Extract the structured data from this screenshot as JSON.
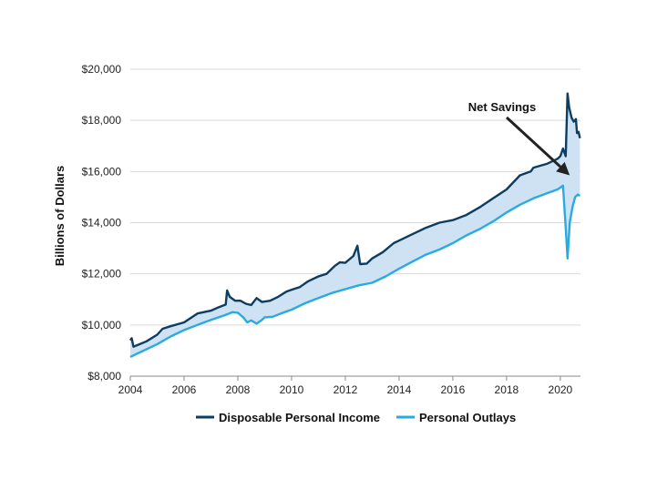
{
  "chart_data": {
    "type": "line",
    "title": "",
    "xlabel": "",
    "ylabel": "Billions of Dollars",
    "xlim": [
      2004,
      2020.75
    ],
    "ylim": [
      8000,
      20000
    ],
    "x_ticks": [
      2004,
      2006,
      2008,
      2010,
      2012,
      2014,
      2016,
      2018,
      2020
    ],
    "x_tick_labels": [
      "2004",
      "2006",
      "2008",
      "2010",
      "2012",
      "2014",
      "2016",
      "2018",
      "2020"
    ],
    "y_ticks": [
      8000,
      10000,
      12000,
      14000,
      16000,
      18000,
      20000
    ],
    "y_tick_labels": [
      "$8,000",
      "$10,000",
      "$12,000",
      "$14,000",
      "$16,000",
      "$18,000",
      "$20,000"
    ],
    "grid": "horizontal",
    "legend_position": "bottom",
    "fill_between": {
      "color": "#cfe2f3"
    },
    "annotation": {
      "text": "Net Savings",
      "points_to": [
        2020.35,
        15850
      ]
    },
    "series": [
      {
        "name": "Disposable Personal Income",
        "color": "#0d3d61",
        "points": [
          [
            2004.0,
            9400
          ],
          [
            2004.05,
            9480
          ],
          [
            2004.12,
            9150
          ],
          [
            2004.3,
            9230
          ],
          [
            2004.6,
            9360
          ],
          [
            2005.0,
            9620
          ],
          [
            2005.2,
            9850
          ],
          [
            2005.5,
            9950
          ],
          [
            2006.0,
            10100
          ],
          [
            2006.5,
            10450
          ],
          [
            2007.0,
            10560
          ],
          [
            2007.3,
            10700
          ],
          [
            2007.55,
            10800
          ],
          [
            2007.6,
            11350
          ],
          [
            2007.7,
            11100
          ],
          [
            2007.9,
            10950
          ],
          [
            2008.1,
            10950
          ],
          [
            2008.3,
            10830
          ],
          [
            2008.5,
            10780
          ],
          [
            2008.7,
            11050
          ],
          [
            2008.9,
            10900
          ],
          [
            2009.2,
            10950
          ],
          [
            2009.5,
            11100
          ],
          [
            2009.8,
            11300
          ],
          [
            2010.0,
            11380
          ],
          [
            2010.3,
            11480
          ],
          [
            2010.6,
            11700
          ],
          [
            2011.0,
            11900
          ],
          [
            2011.3,
            12000
          ],
          [
            2011.6,
            12300
          ],
          [
            2011.8,
            12450
          ],
          [
            2012.0,
            12430
          ],
          [
            2012.3,
            12700
          ],
          [
            2012.45,
            13100
          ],
          [
            2012.55,
            12380
          ],
          [
            2012.8,
            12400
          ],
          [
            2013.0,
            12600
          ],
          [
            2013.4,
            12850
          ],
          [
            2013.8,
            13200
          ],
          [
            2014.0,
            13300
          ],
          [
            2014.5,
            13550
          ],
          [
            2015.0,
            13800
          ],
          [
            2015.5,
            14000
          ],
          [
            2016.0,
            14100
          ],
          [
            2016.5,
            14300
          ],
          [
            2017.0,
            14600
          ],
          [
            2017.5,
            14950
          ],
          [
            2018.0,
            15300
          ],
          [
            2018.5,
            15850
          ],
          [
            2018.9,
            16000
          ],
          [
            2019.0,
            16150
          ],
          [
            2019.5,
            16300
          ],
          [
            2019.9,
            16500
          ],
          [
            2020.0,
            16600
          ],
          [
            2020.1,
            16900
          ],
          [
            2020.2,
            16600
          ],
          [
            2020.27,
            19050
          ],
          [
            2020.33,
            18500
          ],
          [
            2020.42,
            18100
          ],
          [
            2020.5,
            17950
          ],
          [
            2020.58,
            18050
          ],
          [
            2020.62,
            17500
          ],
          [
            2020.68,
            17550
          ],
          [
            2020.73,
            17300
          ]
        ]
      },
      {
        "name": "Personal Outlays",
        "color": "#29abe2",
        "points": [
          [
            2004.0,
            8750
          ],
          [
            2004.2,
            8850
          ],
          [
            2004.5,
            9000
          ],
          [
            2005.0,
            9250
          ],
          [
            2005.5,
            9550
          ],
          [
            2006.0,
            9800
          ],
          [
            2006.5,
            10000
          ],
          [
            2007.0,
            10200
          ],
          [
            2007.5,
            10380
          ],
          [
            2007.8,
            10500
          ],
          [
            2008.0,
            10480
          ],
          [
            2008.2,
            10300
          ],
          [
            2008.35,
            10100
          ],
          [
            2008.5,
            10180
          ],
          [
            2008.7,
            10050
          ],
          [
            2008.9,
            10200
          ],
          [
            2009.0,
            10300
          ],
          [
            2009.3,
            10320
          ],
          [
            2009.6,
            10450
          ],
          [
            2010.0,
            10600
          ],
          [
            2010.5,
            10850
          ],
          [
            2011.0,
            11050
          ],
          [
            2011.5,
            11250
          ],
          [
            2012.0,
            11400
          ],
          [
            2012.5,
            11550
          ],
          [
            2013.0,
            11650
          ],
          [
            2013.5,
            11900
          ],
          [
            2014.0,
            12200
          ],
          [
            2014.5,
            12480
          ],
          [
            2015.0,
            12750
          ],
          [
            2015.5,
            12950
          ],
          [
            2016.0,
            13200
          ],
          [
            2016.5,
            13500
          ],
          [
            2017.0,
            13750
          ],
          [
            2017.5,
            14050
          ],
          [
            2018.0,
            14400
          ],
          [
            2018.5,
            14700
          ],
          [
            2019.0,
            14950
          ],
          [
            2019.5,
            15150
          ],
          [
            2019.9,
            15300
          ],
          [
            2020.1,
            15450
          ],
          [
            2020.2,
            13800
          ],
          [
            2020.27,
            12600
          ],
          [
            2020.35,
            14000
          ],
          [
            2020.45,
            14600
          ],
          [
            2020.55,
            15000
          ],
          [
            2020.65,
            15100
          ],
          [
            2020.73,
            15050
          ]
        ]
      }
    ]
  }
}
